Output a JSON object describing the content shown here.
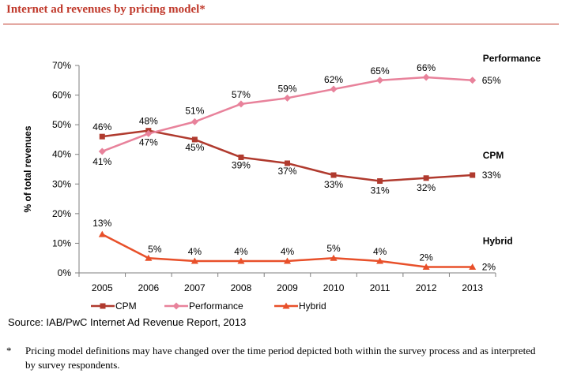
{
  "header": {
    "title": "Internet ad revenues by pricing model*"
  },
  "colors": {
    "accent": "#c0392b",
    "cpm": "#b03a2e",
    "performance": "#e8829b",
    "hybrid": "#e8502a",
    "axis": "#7f7f7f"
  },
  "chart_data": {
    "type": "line",
    "title": "Internet ad revenues by pricing model*",
    "xlabel": "",
    "ylabel": "% of total revenues",
    "x": [
      "2005",
      "2006",
      "2007",
      "2008",
      "2009",
      "2010",
      "2011",
      "2012",
      "2013"
    ],
    "ylim": [
      0,
      70
    ],
    "yticks": [
      0,
      10,
      20,
      30,
      40,
      50,
      60,
      70
    ],
    "ytick_labels": [
      "0%",
      "10%",
      "20%",
      "30%",
      "40%",
      "50%",
      "60%",
      "70%"
    ],
    "series": [
      {
        "name": "CPM",
        "end_label": "CPM",
        "marker": "square",
        "values": [
          46,
          48,
          45,
          39,
          37,
          33,
          31,
          32,
          33
        ],
        "labels": [
          "46%",
          "48%",
          "45%",
          "39%",
          "37%",
          "33%",
          "31%",
          "32%",
          "33%"
        ]
      },
      {
        "name": "Performance",
        "end_label": "Performance",
        "marker": "diamond",
        "values": [
          41,
          47,
          51,
          57,
          59,
          62,
          65,
          66,
          65
        ],
        "labels": [
          "41%",
          "47%",
          "51%",
          "57%",
          "59%",
          "62%",
          "65%",
          "66%",
          "65%"
        ]
      },
      {
        "name": "Hybrid",
        "end_label": "Hybrid",
        "marker": "triangle",
        "values": [
          13,
          5,
          4,
          4,
          4,
          5,
          4,
          2,
          2
        ],
        "labels": [
          "13%",
          "5%",
          "4%",
          "4%",
          "4%",
          "5%",
          "4%",
          "2%",
          "2%"
        ]
      }
    ],
    "legend": [
      "CPM",
      "Performance",
      "Hybrid"
    ],
    "legend_position": "bottom"
  },
  "source": "Source: IAB/PwC Internet Ad Revenue Report, 2013",
  "footnote": {
    "mark": "*",
    "text": "Pricing model definitions may have changed over the time period depicted both within the survey process and as interpreted by survey respondents."
  }
}
